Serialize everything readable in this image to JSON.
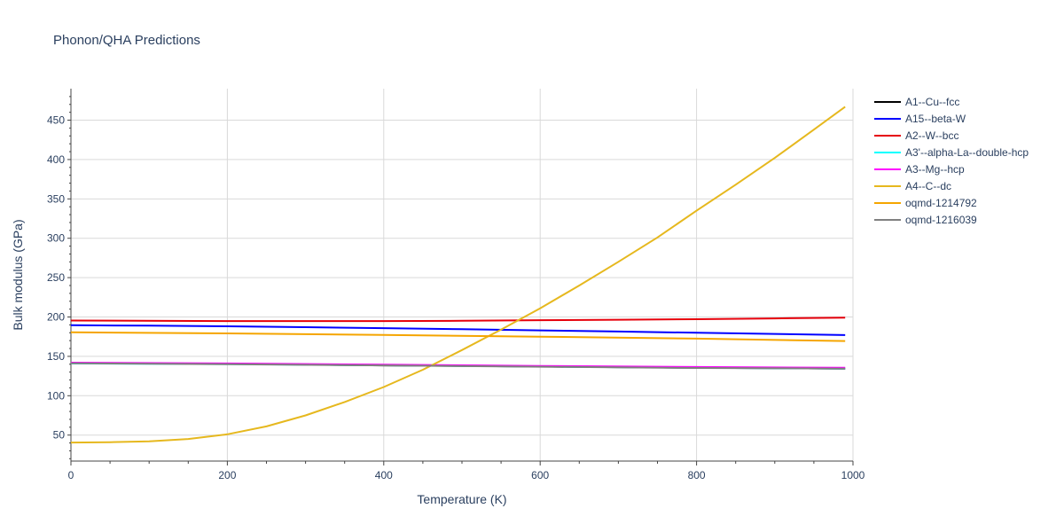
{
  "chart_data": {
    "type": "line",
    "title": "Phonon/QHA Predictions",
    "xlabel": "Temperature (K)",
    "ylabel": "Bulk modulus (GPa)",
    "xlim": [
      0,
      1000
    ],
    "ylim": [
      17,
      490
    ],
    "xticks": [
      0,
      200,
      400,
      600,
      800,
      1000
    ],
    "yticks": [
      50,
      100,
      150,
      200,
      250,
      300,
      350,
      400,
      450
    ],
    "grid": true,
    "legend_position": "right",
    "series": [
      {
        "name": "A1--Cu--fcc",
        "color": "#000000",
        "x": [
          0,
          200,
          400,
          600,
          800,
          990
        ],
        "y": [
          141.5,
          140.5,
          138.5,
          137.0,
          135.5,
          134.5
        ]
      },
      {
        "name": "A15--beta-W",
        "color": "#0000ff",
        "x": [
          0,
          100,
          200,
          300,
          400,
          500,
          600,
          700,
          800,
          900,
          990
        ],
        "y": [
          189.5,
          189.0,
          188.2,
          187.0,
          185.8,
          184.5,
          183.0,
          181.5,
          180.0,
          178.5,
          177.0
        ]
      },
      {
        "name": "A2--W--bcc",
        "color": "#e6000b",
        "x": [
          0,
          200,
          400,
          500,
          600,
          700,
          800,
          900,
          990
        ],
        "y": [
          195.5,
          194.8,
          194.8,
          195.2,
          196.0,
          196.5,
          197.2,
          198.2,
          199.2
        ]
      },
      {
        "name": "A3'--alpha-La--double-hcp",
        "color": "#00ffff",
        "x": [
          0,
          200,
          400,
          600,
          800,
          990
        ],
        "y": [
          141.0,
          140.2,
          138.6,
          137.0,
          135.5,
          134.5
        ]
      },
      {
        "name": "A3--Mg--hcp",
        "color": "#ff00ff",
        "x": [
          0,
          200,
          400,
          600,
          800,
          990
        ],
        "y": [
          142.0,
          141.0,
          139.5,
          137.8,
          136.5,
          135.5
        ]
      },
      {
        "name": "A4--C--dc",
        "color": "#e6b81e",
        "x": [
          0,
          50,
          100,
          150,
          200,
          250,
          300,
          350,
          400,
          450,
          500,
          550,
          600,
          650,
          700,
          750,
          800,
          850,
          900,
          950,
          990
        ],
        "y": [
          40.5,
          41,
          42,
          45,
          51,
          61,
          75,
          92,
          111,
          133,
          158,
          184,
          211,
          240,
          270,
          301,
          335,
          368,
          402,
          438,
          467
        ]
      },
      {
        "name": "oqmd-1214792",
        "color": "#f5a500",
        "x": [
          0,
          200,
          400,
          600,
          800,
          990
        ],
        "y": [
          180.5,
          179.2,
          177.2,
          175.0,
          172.5,
          169.5
        ]
      },
      {
        "name": "oqmd-1216039",
        "color": "#808080",
        "x": [
          0,
          200,
          400,
          600,
          800,
          990
        ],
        "y": [
          141.2,
          140.0,
          138.5,
          136.8,
          135.2,
          134.5
        ]
      }
    ]
  }
}
